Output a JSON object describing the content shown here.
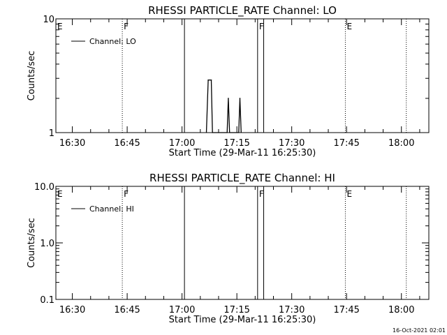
{
  "footer": {
    "timestamp": "16-Oct-2021 02:01"
  },
  "chart_data": [
    {
      "type": "line",
      "title": "RHESSI PARTICLE_RATE Channel: LO",
      "xlabel": "Start Time (29-Mar-11 16:25:30)",
      "ylabel": "Counts/sec",
      "yscale": "log",
      "xlim": [
        "16:25:30",
        "18:07:30"
      ],
      "ylim": [
        1,
        10
      ],
      "x_ticks": [
        "16:30",
        "16:45",
        "17:00",
        "17:15",
        "17:30",
        "17:45",
        "18:00"
      ],
      "y_ticks": [
        {
          "value": 1,
          "label": "1"
        },
        {
          "value": 10,
          "label": "10"
        }
      ],
      "legend": {
        "placement": "top-left",
        "entries": [
          "Channel: LO"
        ]
      },
      "series": [
        {
          "name": "Channel: LO",
          "x": [
            "17:06:40",
            "17:07:10",
            "17:07:40",
            "17:08:00",
            "17:08:20",
            "17:12:20",
            "17:12:40",
            "17:13:00",
            "17:15:30",
            "17:15:50",
            "17:16:10"
          ],
          "values": [
            1,
            2.9,
            2.9,
            2.9,
            1,
            1,
            2,
            1,
            1,
            2,
            1
          ]
        }
      ],
      "markers": [
        {
          "time": "16:25:30",
          "label": "E",
          "style": "none"
        },
        {
          "time": "16:43:40",
          "label": "F",
          "style": "dotted"
        },
        {
          "time": "17:00:40",
          "label": "",
          "style": "solid"
        },
        {
          "time": "17:20:40",
          "label": "F",
          "style": "solid"
        },
        {
          "time": "17:22:20",
          "label": "",
          "style": "solid"
        },
        {
          "time": "17:44:40",
          "label": "E",
          "style": "dotted"
        },
        {
          "time": "18:01:20",
          "label": "",
          "style": "dotted"
        }
      ]
    },
    {
      "type": "line",
      "title": "RHESSI PARTICLE_RATE Channel: HI",
      "xlabel": "Start Time (29-Mar-11 16:25:30)",
      "ylabel": "Counts/sec",
      "yscale": "log",
      "xlim": [
        "16:25:30",
        "18:07:30"
      ],
      "ylim": [
        0.1,
        10
      ],
      "x_ticks": [
        "16:30",
        "16:45",
        "17:00",
        "17:15",
        "17:30",
        "17:45",
        "18:00"
      ],
      "y_ticks": [
        {
          "value": 0.1,
          "label": "0.1"
        },
        {
          "value": 1,
          "label": "1.0"
        },
        {
          "value": 10,
          "label": "10.0"
        }
      ],
      "legend": {
        "placement": "top-left",
        "entries": [
          "Channel: HI"
        ]
      },
      "series": [
        {
          "name": "Channel: HI",
          "x": [],
          "values": []
        }
      ],
      "markers": [
        {
          "time": "16:25:30",
          "label": "E",
          "style": "none"
        },
        {
          "time": "16:43:40",
          "label": "F",
          "style": "dotted"
        },
        {
          "time": "17:00:40",
          "label": "",
          "style": "solid"
        },
        {
          "time": "17:20:40",
          "label": "F",
          "style": "solid"
        },
        {
          "time": "17:22:20",
          "label": "",
          "style": "solid"
        },
        {
          "time": "17:44:40",
          "label": "E",
          "style": "dotted"
        },
        {
          "time": "18:01:20",
          "label": "",
          "style": "dotted"
        }
      ]
    }
  ]
}
